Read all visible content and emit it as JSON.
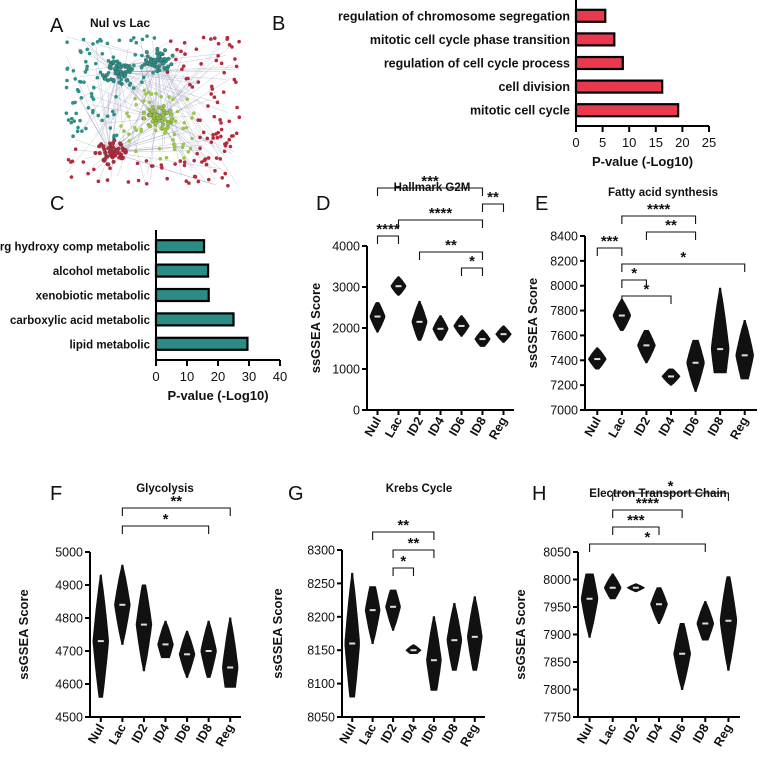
{
  "panel_letters": [
    "A",
    "B",
    "C",
    "D",
    "E",
    "F",
    "G",
    "H"
  ],
  "network": {
    "title": "Nul vs Lac",
    "colors": {
      "teal": "#2f8f87",
      "green": "#9bc64a",
      "red": "#b52a3c",
      "edge": "#6c6f9a"
    }
  },
  "chart_data": [
    {
      "id": "B",
      "type": "bar",
      "orientation": "horizontal",
      "categories": [
        "regulation of chromosome segregation",
        "mitotic cell cycle phase transition",
        "regulation of cell cycle process",
        "cell division",
        "mitotic cell cycle"
      ],
      "values": [
        5.5,
        7.2,
        8.8,
        16.2,
        19.2
      ],
      "xlabel": "P-value (-Log10)",
      "xlim": [
        0,
        25
      ],
      "xticks": [
        "0",
        "5",
        "10",
        "15",
        "20",
        "25"
      ],
      "color": "#e8394f"
    },
    {
      "id": "C",
      "type": "bar",
      "orientation": "horizontal",
      "categories": [
        "org hydroxy comp metabolic",
        "alcohol metabolic",
        "xenobiotic metabolic",
        "carboxylic acid metabolic",
        "lipid metabolic"
      ],
      "values": [
        15.5,
        16.8,
        17.0,
        25.0,
        29.5
      ],
      "xlabel": "P-value (-Log10)",
      "xlim": [
        0,
        40
      ],
      "xticks": [
        "0",
        "10",
        "20",
        "30",
        "40"
      ],
      "color": "#2a8c84"
    },
    {
      "id": "D",
      "type": "violin",
      "title": "Hallmark G2M",
      "ylabel": "ssGSEA  Score",
      "categories": [
        "Nul",
        "Lac",
        "ID2",
        "ID4",
        "ID6",
        "ID8",
        "Reg"
      ],
      "medians": [
        2280,
        3020,
        2150,
        1980,
        2050,
        1730,
        1850
      ],
      "ranges": [
        [
          1900,
          2620
        ],
        [
          2800,
          3250
        ],
        [
          1700,
          2650
        ],
        [
          1700,
          2300
        ],
        [
          1800,
          2300
        ],
        [
          1550,
          1950
        ],
        [
          1650,
          2050
        ]
      ],
      "ylim": [
        0,
        4000
      ],
      "yticks": [
        "0",
        "1000",
        "2000",
        "3000",
        "4000"
      ],
      "significance": [
        {
          "label": "***",
          "from": 0,
          "to": 5
        },
        {
          "label": "**",
          "from": 5,
          "to": 6
        },
        {
          "label": "****",
          "from": 1,
          "to": 5
        },
        {
          "label": "****",
          "from": 0,
          "to": 1
        },
        {
          "label": "**",
          "from": 2,
          "to": 5
        },
        {
          "label": "*",
          "from": 4,
          "to": 5
        }
      ]
    },
    {
      "id": "E",
      "type": "violin",
      "title": "Fatty acid synthesis",
      "ylabel": "ssGSEA  Score",
      "categories": [
        "Nul",
        "Lac",
        "ID2",
        "ID4",
        "ID6",
        "ID8",
        "Reg"
      ],
      "medians": [
        7410,
        7760,
        7520,
        7270,
        7380,
        7490,
        7440
      ],
      "ranges": [
        [
          7330,
          7500
        ],
        [
          7640,
          7890
        ],
        [
          7380,
          7640
        ],
        [
          7200,
          7330
        ],
        [
          7150,
          7560
        ],
        [
          7300,
          7980
        ],
        [
          7250,
          7720
        ]
      ],
      "ylim": [
        7000,
        8400
      ],
      "yticks": [
        "7000",
        "7200",
        "7400",
        "7600",
        "7800",
        "8000",
        "8200",
        "8400"
      ],
      "significance": [
        {
          "label": "****",
          "from": 1,
          "to": 4
        },
        {
          "label": "**",
          "from": 2,
          "to": 4
        },
        {
          "label": "***",
          "from": 0,
          "to": 1
        },
        {
          "label": "*",
          "from": 1,
          "to": 6
        },
        {
          "label": "*",
          "from": 1,
          "to": 2
        },
        {
          "label": "*",
          "from": 1,
          "to": 3
        }
      ]
    },
    {
      "id": "F",
      "type": "violin",
      "title": "Glycolysis",
      "ylabel": "ssGSEA Score",
      "categories": [
        "Nul",
        "Lac",
        "ID2",
        "ID4",
        "ID6",
        "ID8",
        "Reg"
      ],
      "medians": [
        4730,
        4840,
        4780,
        4720,
        4690,
        4700,
        4650
      ],
      "ranges": [
        [
          4560,
          4930
        ],
        [
          4720,
          4960
        ],
        [
          4640,
          4900
        ],
        [
          4680,
          4790
        ],
        [
          4620,
          4760
        ],
        [
          4620,
          4790
        ],
        [
          4590,
          4800
        ]
      ],
      "ylim": [
        4500,
        5000
      ],
      "yticks": [
        "4500",
        "4600",
        "4700",
        "4800",
        "4900",
        "5000"
      ],
      "significance": [
        {
          "label": "**",
          "from": 1,
          "to": 6
        },
        {
          "label": "*",
          "from": 1,
          "to": 5
        }
      ]
    },
    {
      "id": "G",
      "type": "violin",
      "title": "Krebs Cycle",
      "ylabel": "ssGSEA Score",
      "categories": [
        "Nul",
        "Lac",
        "ID2",
        "ID4",
        "ID6",
        "ID8",
        "Reg"
      ],
      "medians": [
        8160,
        8210,
        8215,
        8150,
        8135,
        8165,
        8170
      ],
      "ranges": [
        [
          8080,
          8265
        ],
        [
          8160,
          8245
        ],
        [
          8180,
          8240
        ],
        [
          8145,
          8158
        ],
        [
          8090,
          8200
        ],
        [
          8120,
          8220
        ],
        [
          8120,
          8230
        ]
      ],
      "ylim": [
        8050,
        8300
      ],
      "yticks": [
        "8050",
        "8100",
        "8150",
        "8200",
        "8250",
        "8300"
      ],
      "significance": [
        {
          "label": "**",
          "from": 1,
          "to": 4
        },
        {
          "label": "**",
          "from": 2,
          "to": 4
        },
        {
          "label": "*",
          "from": 2,
          "to": 3
        }
      ]
    },
    {
      "id": "H",
      "type": "violin",
      "title": "Electron Transport Chain",
      "ylabel": "ssGSEA Score",
      "categories": [
        "Nul",
        "Lac",
        "ID2",
        "ID4",
        "ID6",
        "ID8",
        "Reg"
      ],
      "medians": [
        7965,
        7985,
        7985,
        7955,
        7865,
        7920,
        7925
      ],
      "ranges": [
        [
          7895,
          8010
        ],
        [
          7965,
          8010
        ],
        [
          7978,
          7992
        ],
        [
          7920,
          7985
        ],
        [
          7800,
          7920
        ],
        [
          7890,
          7960
        ],
        [
          7835,
          8005
        ]
      ],
      "ylim": [
        7750,
        8050
      ],
      "yticks": [
        "7750",
        "7800",
        "7850",
        "7900",
        "7950",
        "8000",
        "8050"
      ],
      "significance": [
        {
          "label": "*",
          "from": 1,
          "to": 6
        },
        {
          "label": "****",
          "from": 1,
          "to": 4
        },
        {
          "label": "***",
          "from": 1,
          "to": 3
        },
        {
          "label": "*",
          "from": 0,
          "to": 5
        }
      ]
    }
  ]
}
